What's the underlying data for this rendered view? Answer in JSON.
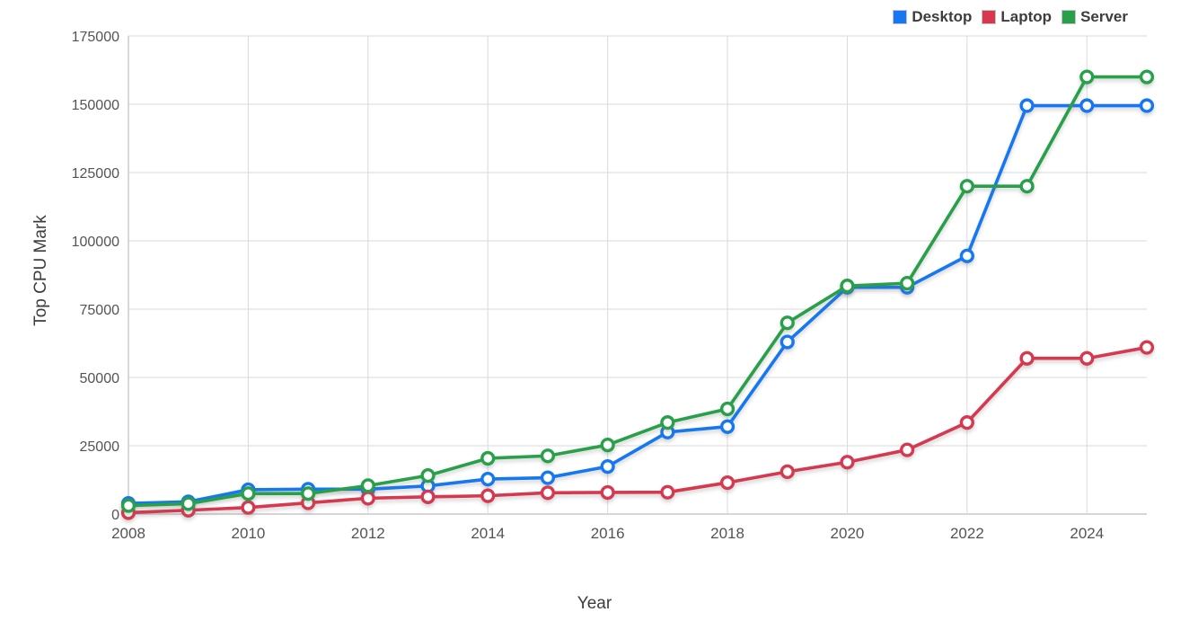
{
  "chart_data": {
    "type": "line",
    "title": "",
    "xlabel": "Year",
    "ylabel": "Top CPU Mark",
    "x": [
      2008,
      2009,
      2010,
      2011,
      2012,
      2013,
      2014,
      2015,
      2016,
      2017,
      2018,
      2019,
      2020,
      2021,
      2022,
      2023,
      2024,
      2025
    ],
    "x_tick_values": [
      2008,
      2010,
      2012,
      2014,
      2016,
      2018,
      2020,
      2022,
      2024
    ],
    "xlim": [
      2008,
      2025
    ],
    "ylim": [
      0,
      175000
    ],
    "y_tick_step": 25000,
    "y_tick_values": [
      0,
      25000,
      50000,
      75000,
      100000,
      125000,
      150000,
      175000
    ],
    "grid": true,
    "legend_position": "top-right",
    "marker_style": "open-circle",
    "series": [
      {
        "name": "Desktop",
        "color": "#1677f2",
        "values": [
          3900,
          4500,
          8900,
          9100,
          9100,
          10300,
          12800,
          13300,
          17400,
          30000,
          32000,
          63000,
          83000,
          83000,
          94500,
          149500,
          149500,
          149500
        ]
      },
      {
        "name": "Laptop",
        "color": "#d6394f",
        "values": [
          500,
          1400,
          2400,
          4100,
          5800,
          6300,
          6700,
          7800,
          7900,
          8000,
          11500,
          15500,
          19000,
          23500,
          33500,
          57000,
          57000,
          61000
        ]
      },
      {
        "name": "Server",
        "color": "#28a049",
        "values": [
          3100,
          3800,
          7500,
          7500,
          10400,
          14100,
          20400,
          21300,
          25300,
          33500,
          38500,
          70000,
          83500,
          84500,
          120000,
          120000,
          160000,
          160000
        ]
      }
    ]
  }
}
